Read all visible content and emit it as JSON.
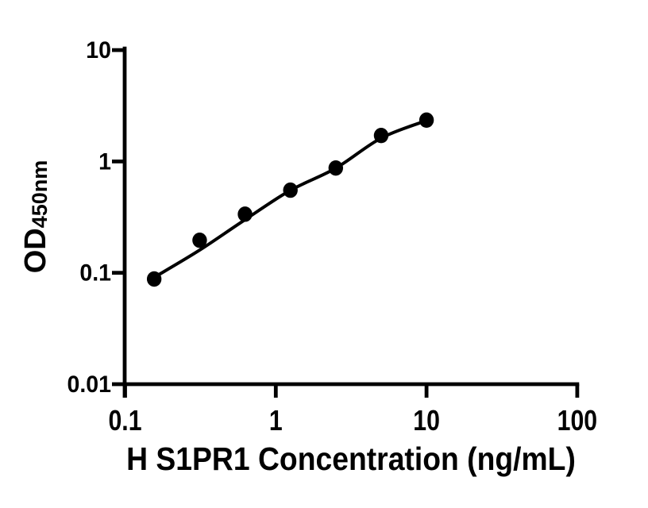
{
  "figure": {
    "background_color": "#ffffff",
    "axis_color": "#000000",
    "text_color": "#000000"
  },
  "chart_data": {
    "type": "scatter",
    "title": "",
    "xlabel": "H S1PR1 Concentration (ng/mL)",
    "ylabel_main": "OD",
    "ylabel_sub": "450nm",
    "ylabel_full": "OD450nm",
    "x_scale": "log",
    "y_scale": "log",
    "xlim": [
      0.1,
      100
    ],
    "ylim": [
      0.01,
      10
    ],
    "x_ticks": [
      0.1,
      1,
      10,
      100
    ],
    "x_tick_labels": [
      "0.1",
      "1",
      "10",
      "100"
    ],
    "y_ticks": [
      0.01,
      0.1,
      1,
      10
    ],
    "y_tick_labels": [
      "0.01",
      "0.1",
      "1",
      "10"
    ],
    "grid": false,
    "legend": "none",
    "series": [
      {
        "name": "standard-points",
        "type": "scatter",
        "marker": "filled-circle",
        "color": "#000000",
        "x": [
          0.156,
          0.3125,
          0.625,
          1.25,
          2.5,
          5,
          10
        ],
        "y": [
          0.088,
          0.196,
          0.336,
          0.552,
          0.873,
          1.71,
          2.35
        ]
      },
      {
        "name": "fit-curve",
        "type": "line",
        "color": "#000000",
        "x": [
          0.156,
          0.3125,
          0.625,
          1.25,
          2.5,
          5,
          10
        ],
        "y": [
          0.091,
          0.16,
          0.3,
          0.55,
          0.87,
          1.62,
          2.33
        ]
      }
    ]
  }
}
